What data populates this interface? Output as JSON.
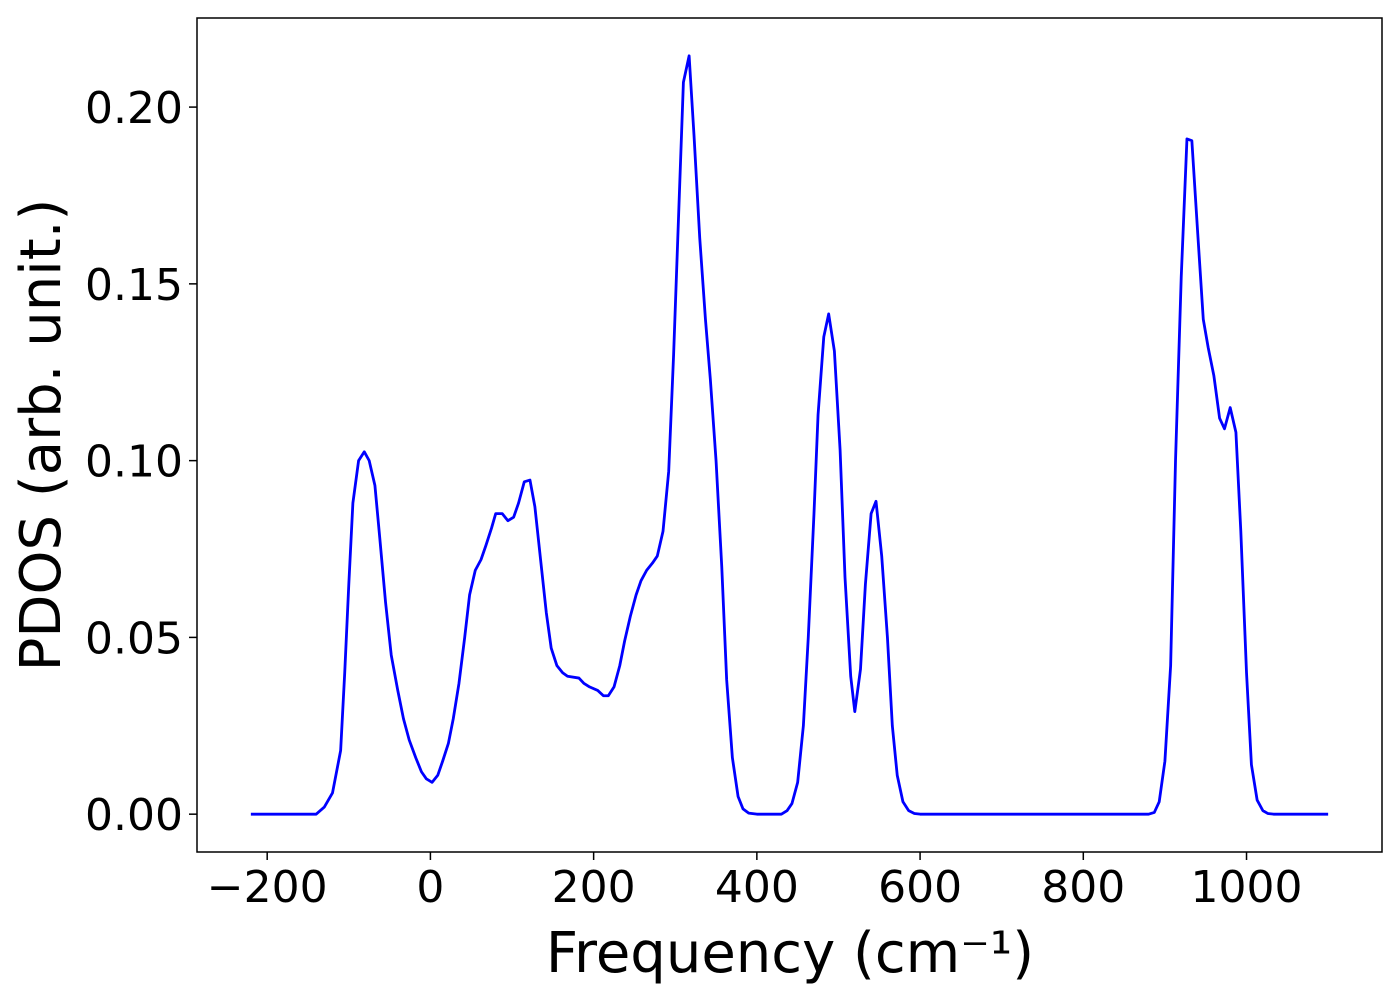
{
  "chart_data": {
    "type": "line",
    "xlabel": "Frequency (cm⁻¹)",
    "ylabel": "PDOS (arb. unit.)",
    "xlim": [
      -286,
      1166
    ],
    "ylim": [
      -0.0107,
      0.2252
    ],
    "xticks": [
      {
        "value": -200,
        "label": "−200"
      },
      0,
      200,
      400,
      600,
      800,
      1000
    ],
    "yticks": [
      {
        "value": 0,
        "label": "0.00"
      },
      {
        "value": 0.05,
        "label": "0.05"
      },
      {
        "value": 0.1,
        "label": "0.10"
      },
      {
        "value": 0.15,
        "label": "0.15"
      },
      {
        "value": 0.2,
        "label": "0.20"
      }
    ],
    "series": [
      {
        "color": "#0000ff",
        "x": [
          -220,
          -140,
          -130,
          -120,
          -110,
          -105,
          -100,
          -95,
          -88,
          -81,
          -75,
          -68,
          -62,
          -55,
          -48,
          -40,
          -33,
          -26,
          -18,
          -11,
          -5,
          2,
          9,
          15,
          22,
          28,
          35,
          42,
          48,
          55,
          62,
          68,
          75,
          80,
          88,
          95,
          102,
          108,
          115,
          122,
          128,
          135,
          142,
          148,
          155,
          162,
          168,
          182,
          188,
          195,
          205,
          212,
          218,
          225,
          232,
          238,
          245,
          252,
          258,
          265,
          272,
          278,
          285,
          292,
          298,
          305,
          310,
          317,
          323,
          330,
          337,
          343,
          350,
          357,
          363,
          370,
          377,
          383,
          390,
          400,
          430,
          437,
          443,
          450,
          457,
          463,
          470,
          475,
          482,
          488,
          495,
          502,
          508,
          515,
          520,
          527,
          533,
          540,
          546,
          553,
          560,
          566,
          572,
          579,
          586,
          593,
          600,
          880,
          887,
          893,
          900,
          907,
          913,
          920,
          927,
          933,
          940,
          947,
          953,
          960,
          967,
          973,
          980,
          987,
          993,
          1000,
          1006,
          1013,
          1020,
          1026,
          1033,
          1100
        ],
        "values": [
          0,
          0,
          0.002,
          0.006,
          0.018,
          0.04,
          0.065,
          0.088,
          0.1,
          0.1025,
          0.1,
          0.093,
          0.078,
          0.06,
          0.045,
          0.035,
          0.027,
          0.021,
          0.016,
          0.012,
          0.01,
          0.009,
          0.011,
          0.015,
          0.02,
          0.027,
          0.037,
          0.05,
          0.062,
          0.069,
          0.072,
          0.076,
          0.081,
          0.085,
          0.085,
          0.083,
          0.084,
          0.088,
          0.094,
          0.0945,
          0.087,
          0.072,
          0.057,
          0.047,
          0.042,
          0.04,
          0.039,
          0.0385,
          0.037,
          0.036,
          0.035,
          0.0335,
          0.0335,
          0.036,
          0.042,
          0.049,
          0.056,
          0.062,
          0.066,
          0.069,
          0.071,
          0.073,
          0.08,
          0.097,
          0.13,
          0.175,
          0.207,
          0.2145,
          0.192,
          0.163,
          0.14,
          0.123,
          0.1,
          0.07,
          0.038,
          0.016,
          0.005,
          0.0015,
          0.0003,
          0,
          0,
          0.001,
          0.003,
          0.009,
          0.025,
          0.05,
          0.085,
          0.113,
          0.135,
          0.1415,
          0.131,
          0.103,
          0.067,
          0.039,
          0.029,
          0.041,
          0.065,
          0.085,
          0.0885,
          0.073,
          0.05,
          0.025,
          0.011,
          0.0035,
          0.001,
          0.0002,
          0,
          0,
          0.0005,
          0.0035,
          0.015,
          0.042,
          0.1,
          0.152,
          0.191,
          0.1905,
          0.165,
          0.14,
          0.132,
          0.124,
          0.112,
          0.109,
          0.115,
          0.108,
          0.08,
          0.04,
          0.014,
          0.004,
          0.001,
          0.0002,
          0,
          0
        ]
      }
    ]
  }
}
